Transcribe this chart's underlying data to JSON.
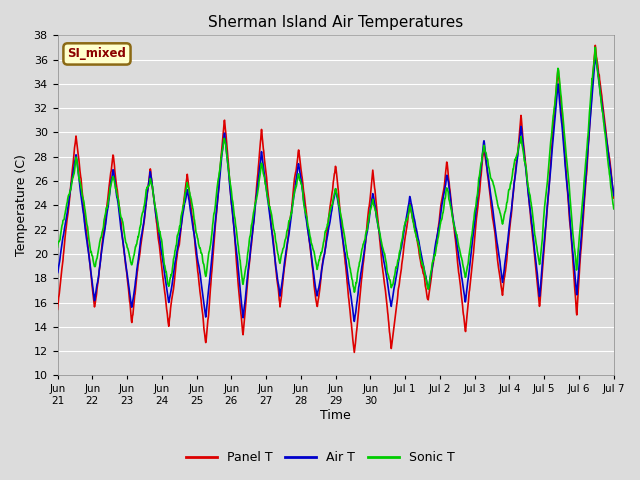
{
  "title": "Sherman Island Air Temperatures",
  "xlabel": "Time",
  "ylabel": "Temperature (C)",
  "ylim": [
    10,
    38
  ],
  "yticks": [
    10,
    12,
    14,
    16,
    18,
    20,
    22,
    24,
    26,
    28,
    30,
    32,
    34,
    36,
    38
  ],
  "plot_bg_color": "#dcdcdc",
  "grid_color": "#ffffff",
  "legend_label": "SI_mixed",
  "legend_text_color": "#8b0000",
  "legend_bg_color": "#ffffcc",
  "legend_border_color": "#8b6914",
  "panel_color": "#dd0000",
  "air_color": "#0000cc",
  "sonic_color": "#00cc00",
  "lw": 1.2,
  "xtick_labels": [
    "Jun\n22",
    "Jun\n23",
    "Jun\n24",
    "Jun\n25",
    "Jun\n26",
    "Jun\n27",
    "Jun\n28",
    "Jun\n29",
    "Jun\n30",
    "Jul 1",
    "Jul 2",
    "Jul 3",
    "Jul 4",
    "Jul 5",
    "Jul 6",
    "Jul 7"
  ],
  "xtick_first": "Jun\n21",
  "num_days": 16,
  "ppd": 96,
  "panel_peaks": [
    15.5,
    29.7,
    15.5,
    28.2,
    14.5,
    27.0,
    14.0,
    26.7,
    12.5,
    31.2,
    13.2,
    30.0,
    15.7,
    28.8,
    15.5,
    27.4,
    11.7,
    26.8,
    12.2,
    24.3,
    16.2,
    27.4,
    13.6,
    29.0,
    16.2,
    31.2,
    15.5,
    35.5,
    15.0,
    37.2,
    25.0
  ],
  "air_peaks": [
    18.5,
    28.2,
    16.0,
    27.0,
    15.5,
    26.8,
    16.0,
    25.3,
    14.8,
    30.2,
    14.8,
    28.5,
    16.5,
    27.5,
    16.5,
    25.5,
    14.5,
    25.0,
    15.8,
    24.7,
    17.0,
    26.5,
    16.0,
    29.3,
    17.5,
    30.5,
    16.5,
    34.2,
    16.5,
    36.5,
    25.0
  ],
  "sonic_peaks": [
    20.5,
    27.8,
    18.7,
    26.5,
    18.8,
    26.2,
    17.3,
    26.0,
    18.0,
    29.8,
    17.5,
    27.5,
    19.0,
    26.5,
    18.7,
    25.5,
    17.0,
    24.5,
    17.0,
    24.0,
    17.0,
    25.5,
    18.0,
    29.0,
    22.5,
    30.0,
    19.0,
    35.7,
    18.5,
    37.0,
    23.5
  ]
}
